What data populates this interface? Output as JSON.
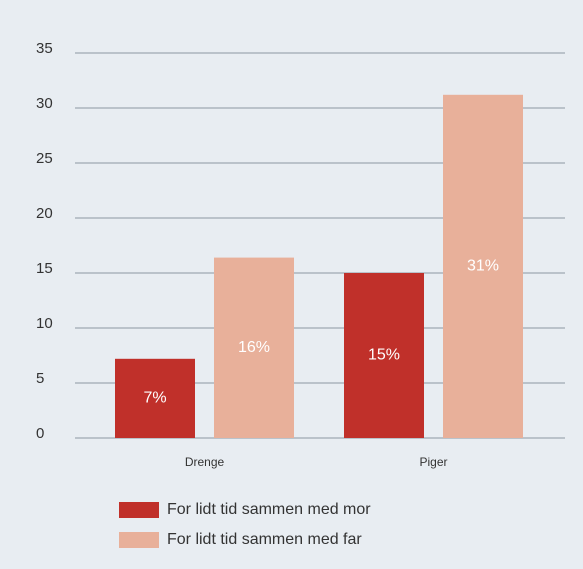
{
  "chart_data": {
    "type": "bar",
    "categories": [
      "Drenge",
      "Piger"
    ],
    "series": [
      {
        "name": "For lidt tid sammen med mor",
        "color": "#c0302a",
        "values": [
          7.2,
          15
        ],
        "value_labels": [
          "7%",
          "15%"
        ]
      },
      {
        "name": "For lidt tid sammen med far",
        "color": "#e8b09a",
        "values": [
          16.4,
          31.2
        ],
        "value_labels": [
          "16%",
          "31%"
        ]
      }
    ],
    "ylim": [
      0,
      35
    ],
    "yticks": [
      0,
      5,
      10,
      15,
      20,
      25,
      30,
      35
    ],
    "grid": true
  }
}
